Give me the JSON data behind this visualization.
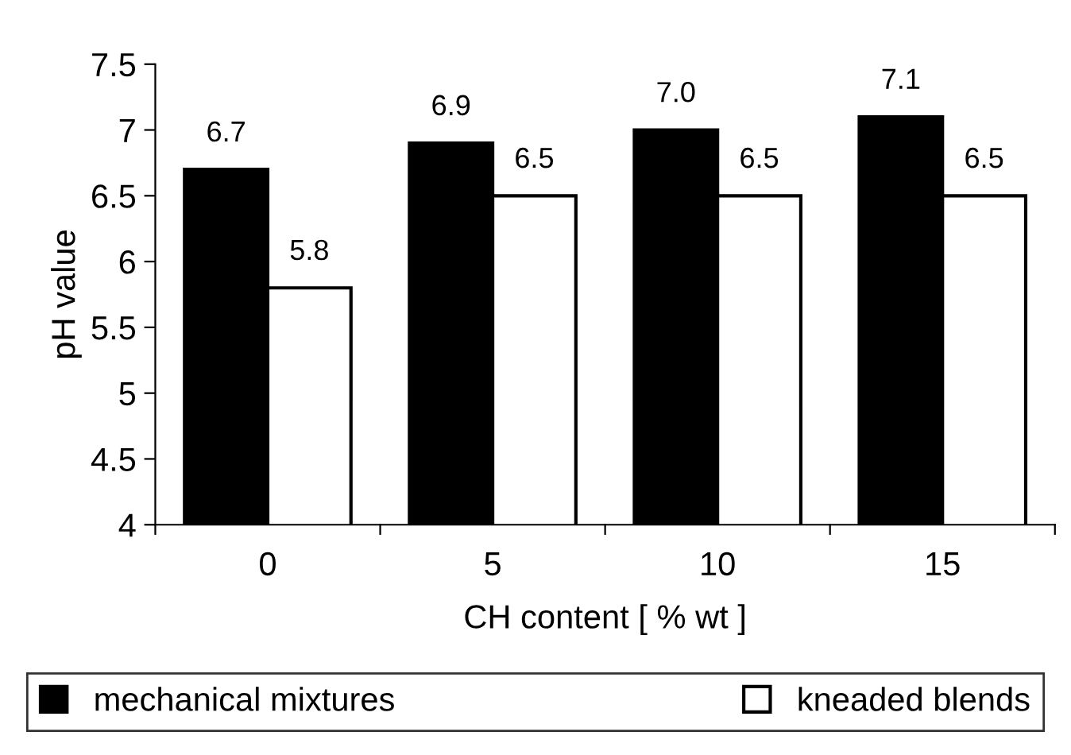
{
  "chart_data": {
    "type": "bar",
    "xlabel": "CH content [ % wt ]",
    "ylabel": "pH value",
    "categories": [
      "0",
      "5",
      "10",
      "15"
    ],
    "series": [
      {
        "name": "mechanical mixtures",
        "color": "#000000",
        "values": [
          6.7,
          6.9,
          7.0,
          7.1
        ],
        "value_labels": [
          "6.7",
          "6.9",
          "7.0",
          "7.1"
        ]
      },
      {
        "name": "kneaded blends",
        "color": "#ffffff",
        "values": [
          5.8,
          6.5,
          6.5,
          6.5
        ],
        "value_labels": [
          "5.8",
          "6.5",
          "6.5",
          "6.5"
        ]
      }
    ],
    "ylim": [
      4,
      7.5
    ],
    "yticks": [
      4,
      4.5,
      5,
      5.5,
      6,
      6.5,
      7,
      7.5
    ],
    "grid": false,
    "legend": "bottom"
  }
}
